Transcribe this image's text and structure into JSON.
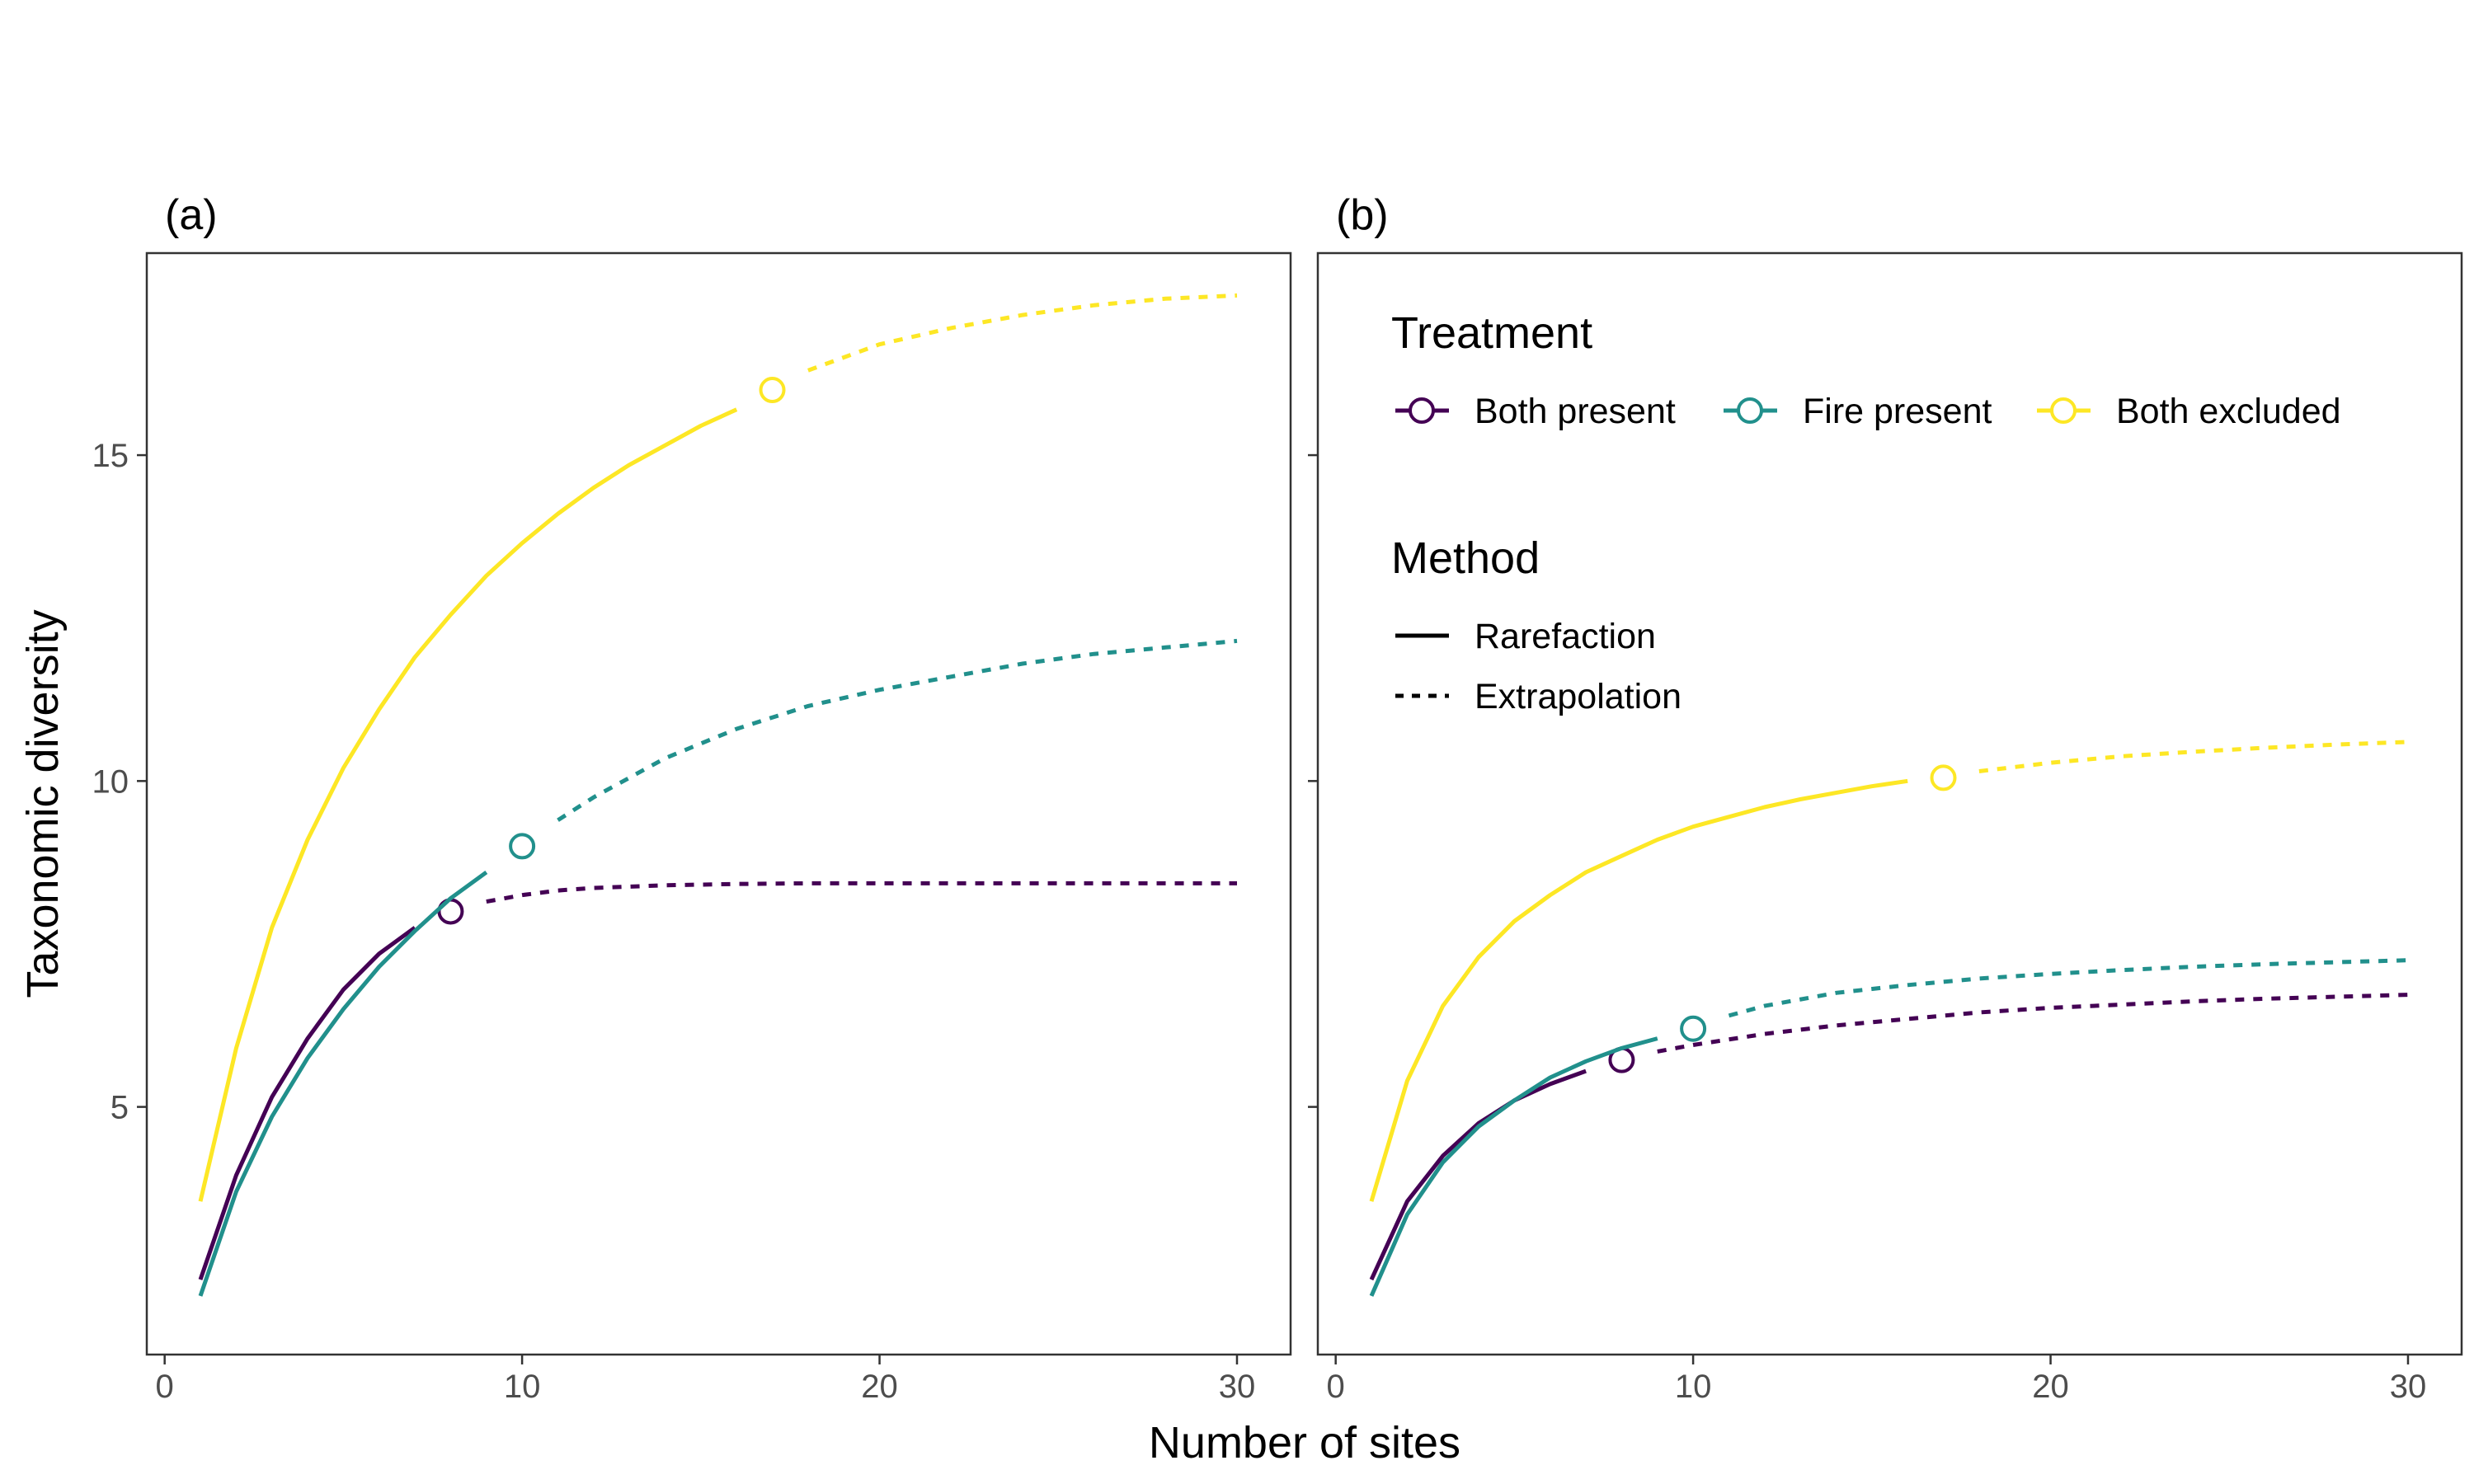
{
  "figure": {
    "xlabel": "Number of sites",
    "ylabel": "Taxonomic diversity"
  },
  "legend": {
    "treatment_title": "Treatment",
    "method_title": "Method",
    "treatments": [
      {
        "name": "Both present",
        "color": "#440154"
      },
      {
        "name": "Fire present",
        "color": "#21908C"
      },
      {
        "name": "Both excluded",
        "color": "#FDE725"
      }
    ],
    "methods": [
      {
        "name": "Rarefaction",
        "linestyle": "solid"
      },
      {
        "name": "Extrapolation",
        "linestyle": "dashed"
      }
    ],
    "placement": "inside panel (b), top-left"
  },
  "chart_data": [
    {
      "type": "line",
      "panel_label": "(a)",
      "xlim": [
        -0.5,
        31.5
      ],
      "ylim": [
        1.2,
        18.1
      ],
      "x_ticks": [
        0,
        10,
        20,
        30
      ],
      "y_ticks": [
        5,
        10,
        15
      ],
      "grid": false,
      "series": [
        {
          "name": "Both present",
          "color": "#440154",
          "rarefaction": {
            "x": [
              1,
              2,
              3,
              4,
              5,
              6,
              7
            ],
            "y": [
              2.35,
              3.95,
              5.15,
              6.05,
              6.8,
              7.35,
              7.75
            ]
          },
          "observed": {
            "x": 8,
            "y": 8.0
          },
          "extrapolation": {
            "x": [
              9,
              10,
              11,
              12,
              14,
              16,
              18,
              20,
              22,
              24,
              26,
              28,
              30
            ],
            "y": [
              8.15,
              8.25,
              8.32,
              8.36,
              8.4,
              8.42,
              8.43,
              8.43,
              8.43,
              8.43,
              8.43,
              8.43,
              8.43
            ]
          }
        },
        {
          "name": "Fire present",
          "color": "#21908C",
          "rarefaction": {
            "x": [
              1,
              2,
              3,
              4,
              5,
              6,
              7,
              8,
              9
            ],
            "y": [
              2.1,
              3.7,
              4.85,
              5.75,
              6.5,
              7.15,
              7.7,
              8.2,
              8.6
            ]
          },
          "observed": {
            "x": 10,
            "y": 9.0
          },
          "extrapolation": {
            "x": [
              11,
              12,
              14,
              16,
              18,
              20,
              22,
              24,
              26,
              28,
              30
            ],
            "y": [
              9.4,
              9.75,
              10.35,
              10.8,
              11.15,
              11.4,
              11.6,
              11.8,
              11.95,
              12.05,
              12.15
            ]
          }
        },
        {
          "name": "Both excluded",
          "color": "#FDE725",
          "rarefaction": {
            "x": [
              1,
              2,
              3,
              4,
              5,
              6,
              7,
              8,
              9,
              10,
              11,
              12,
              13,
              14,
              15,
              16
            ],
            "y": [
              3.55,
              5.9,
              7.75,
              9.1,
              10.2,
              11.1,
              11.9,
              12.55,
              13.15,
              13.65,
              14.1,
              14.5,
              14.85,
              15.15,
              15.45,
              15.7
            ]
          },
          "observed": {
            "x": 17,
            "y": 16.0
          },
          "extrapolation": {
            "x": [
              18,
              20,
              22,
              24,
              26,
              28,
              30
            ],
            "y": [
              16.3,
              16.7,
              16.95,
              17.15,
              17.3,
              17.4,
              17.45
            ]
          }
        }
      ]
    },
    {
      "type": "line",
      "panel_label": "(b)",
      "xlim": [
        -0.5,
        31.5
      ],
      "ylim": [
        1.2,
        18.1
      ],
      "x_ticks": [
        0,
        10,
        20,
        30
      ],
      "y_ticks": [
        5,
        10,
        15
      ],
      "grid": false,
      "series": [
        {
          "name": "Both present",
          "color": "#440154",
          "rarefaction": {
            "x": [
              1,
              2,
              3,
              4,
              5,
              6,
              7
            ],
            "y": [
              2.35,
              3.55,
              4.25,
              4.75,
              5.1,
              5.35,
              5.55
            ]
          },
          "observed": {
            "x": 8,
            "y": 5.72
          },
          "extrapolation": {
            "x": [
              9,
              10,
              12,
              14,
              16,
              18,
              20,
              22,
              24,
              26,
              28,
              30
            ],
            "y": [
              5.85,
              5.95,
              6.12,
              6.25,
              6.35,
              6.45,
              6.52,
              6.57,
              6.62,
              6.66,
              6.69,
              6.72
            ]
          }
        },
        {
          "name": "Fire present",
          "color": "#21908C",
          "rarefaction": {
            "x": [
              1,
              2,
              3,
              4,
              5,
              6,
              7,
              8,
              9
            ],
            "y": [
              2.1,
              3.35,
              4.15,
              4.7,
              5.1,
              5.45,
              5.7,
              5.9,
              6.05
            ]
          },
          "observed": {
            "x": 10,
            "y": 6.2
          },
          "extrapolation": {
            "x": [
              11,
              12,
              14,
              16,
              18,
              20,
              22,
              24,
              26,
              28,
              30
            ],
            "y": [
              6.4,
              6.55,
              6.75,
              6.87,
              6.97,
              7.04,
              7.1,
              7.15,
              7.19,
              7.22,
              7.25
            ]
          }
        },
        {
          "name": "Both excluded",
          "color": "#FDE725",
          "rarefaction": {
            "x": [
              1,
              2,
              3,
              4,
              5,
              6,
              7,
              8,
              9,
              10,
              11,
              12,
              13,
              14,
              15,
              16
            ],
            "y": [
              3.55,
              5.4,
              6.55,
              7.3,
              7.85,
              8.25,
              8.6,
              8.85,
              9.1,
              9.3,
              9.45,
              9.6,
              9.72,
              9.82,
              9.92,
              10.0
            ]
          },
          "observed": {
            "x": 17,
            "y": 10.05
          },
          "extrapolation": {
            "x": [
              18,
              20,
              22,
              24,
              26,
              28,
              30
            ],
            "y": [
              10.15,
              10.28,
              10.38,
              10.45,
              10.51,
              10.56,
              10.6
            ]
          }
        }
      ]
    }
  ]
}
